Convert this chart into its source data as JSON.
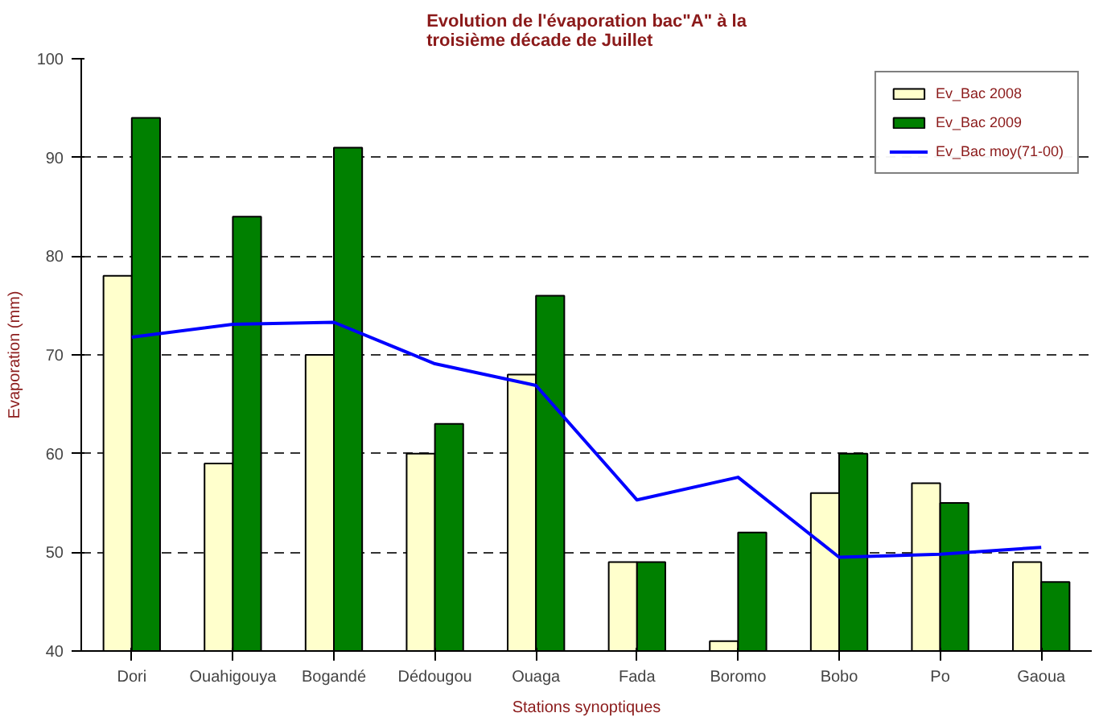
{
  "chart_data": {
    "type": "bar",
    "title": "Evolution de l'évaporation bac\"A\" à la troisième décade de Juillet",
    "xlabel": "Stations synoptiques",
    "ylabel": "Evaporation (mm)",
    "categories": [
      "Dori",
      "Ouahigouya",
      "Bogandé",
      "Dédougou",
      "Ouaga",
      "Fada",
      "Boromo",
      "Bobo",
      "Po",
      "Gaoua"
    ],
    "series": [
      {
        "name": "Ev_Bac 2008",
        "color": "#ffffcc",
        "values": [
          78,
          59,
          70,
          60,
          68,
          49,
          41,
          56,
          57,
          49
        ]
      },
      {
        "name": "Ev_Bac 2009",
        "color": "#008000",
        "values": [
          94,
          84,
          91,
          63,
          76,
          49,
          52,
          60,
          55,
          47
        ]
      },
      {
        "name": "Ev_Bac moy(71-00)",
        "type": "line",
        "color": "#0000ff",
        "values": [
          71.8,
          73.1,
          73.3,
          69.1,
          66.9,
          55.3,
          57.6,
          49.5,
          49.8,
          50.5
        ]
      }
    ],
    "ylim": [
      40,
      100
    ],
    "yticks": [
      40,
      50,
      60,
      70,
      80,
      90,
      100
    ],
    "grid": "y",
    "legend": "top right"
  }
}
